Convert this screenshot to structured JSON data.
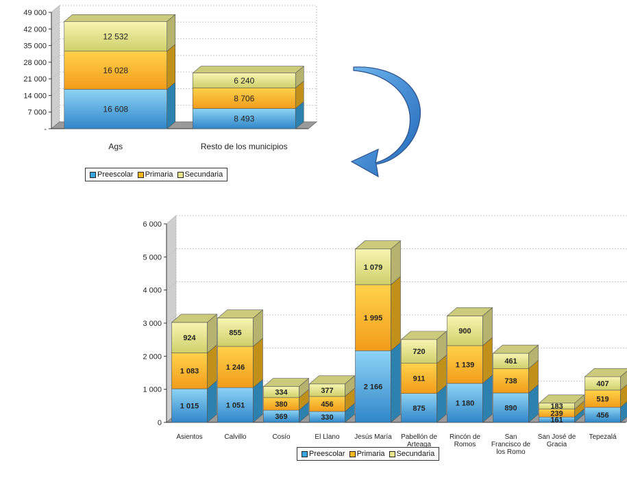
{
  "chart_data": [
    {
      "type": "bar",
      "stacked": true,
      "style": "3d",
      "categories": [
        "Ags",
        "Resto de los municipios"
      ],
      "series": [
        {
          "name": "Preescolar",
          "values": [
            16608,
            8493
          ],
          "labels": [
            "16 608",
            "8 493"
          ]
        },
        {
          "name": "Primaria",
          "values": [
            16028,
            8706
          ],
          "labels": [
            "16 028",
            "8 706"
          ]
        },
        {
          "name": "Secundaria",
          "values": [
            12532,
            6240
          ],
          "labels": [
            "12 532",
            "6 240"
          ]
        }
      ],
      "yticks": [
        "-",
        "7 000",
        "14 000",
        "21 000",
        "28 000",
        "35 000",
        "42 000",
        "49 000"
      ],
      "ylim": [
        0,
        49000
      ],
      "grid": true,
      "legend": "bottom"
    },
    {
      "type": "bar",
      "stacked": true,
      "style": "3d",
      "categories": [
        "Asientos",
        "Calvillo",
        "Cosío",
        "El Llano",
        "Jesús María",
        "Pabellón de Arteaga",
        "Rincón de Romos",
        "San Francisco de los Romo",
        "San José de Gracia",
        "Tepezalá"
      ],
      "category_lines": [
        [
          "Asientos"
        ],
        [
          "Calvillo"
        ],
        [
          "Cosío"
        ],
        [
          "El Llano"
        ],
        [
          "Jesús María"
        ],
        [
          "Pabellón de",
          "Arteaga"
        ],
        [
          "Rincón de",
          "Romos"
        ],
        [
          "San",
          "Francisco de",
          "los Romo"
        ],
        [
          "San José de",
          "Gracia"
        ],
        [
          "Tepezalá"
        ]
      ],
      "series": [
        {
          "name": "Preescolar",
          "values": [
            1015,
            1051,
            369,
            330,
            2166,
            875,
            1180,
            890,
            161,
            456
          ],
          "labels": [
            "1 015",
            "1 051",
            "369",
            "330",
            "2 166",
            "875",
            "1 180",
            "890",
            "161",
            "456"
          ]
        },
        {
          "name": "Primaria",
          "values": [
            1083,
            1246,
            380,
            456,
            1995,
            911,
            1139,
            738,
            239,
            519
          ],
          "labels": [
            "1 083",
            "1 246",
            "380",
            "456",
            "1 995",
            "911",
            "1 139",
            "738",
            "239",
            "519"
          ]
        },
        {
          "name": "Secundaria",
          "values": [
            924,
            855,
            334,
            377,
            1079,
            720,
            900,
            461,
            183,
            407
          ],
          "labels": [
            "924",
            "855",
            "334",
            "377",
            "1 079",
            "720",
            "900",
            "461",
            "183",
            "407"
          ]
        }
      ],
      "yticks": [
        "0",
        "1 000",
        "2 000",
        "3 000",
        "4 000",
        "5 000",
        "6 000"
      ],
      "ylim": [
        0,
        6000
      ],
      "grid": true,
      "legend": "bottom"
    }
  ],
  "colors": {
    "preescolar": "#3aa6df",
    "primaria": "#f6b820",
    "secundaria": "#e8e58c",
    "arrow": "#3a86d0"
  }
}
